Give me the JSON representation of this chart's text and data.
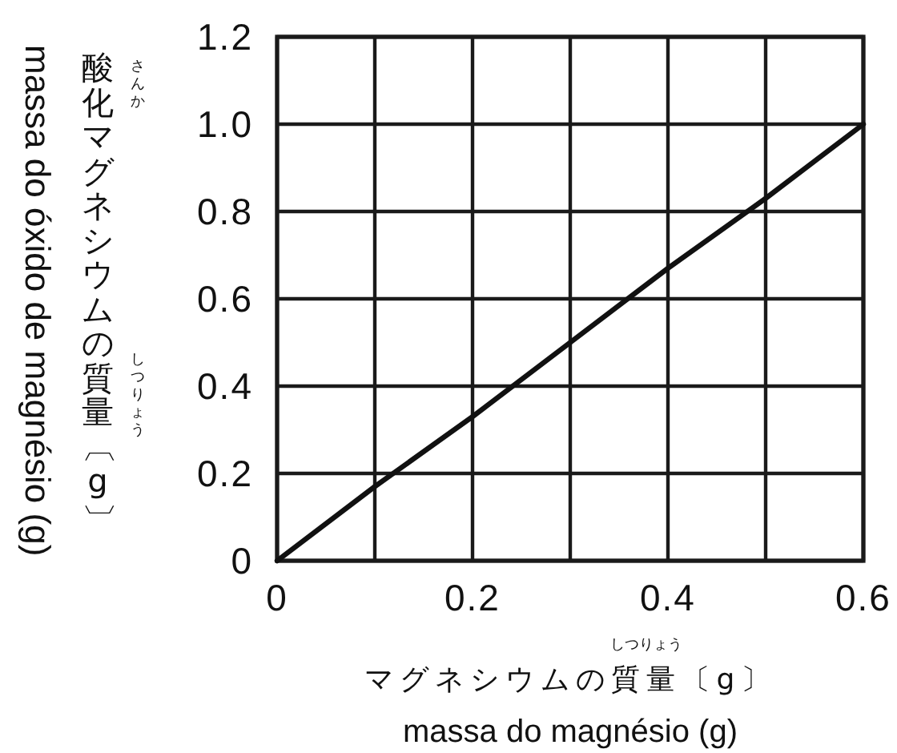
{
  "chart_data": {
    "type": "line",
    "xlabel": "マグネシウムの質量〔g〕",
    "ylabel": "酸化マグネシウムの質量〔g〕",
    "annotations": [
      "さんか",
      "しつりょう",
      "しつりょう",
      "massa do óxido de magnésio (g)",
      "massa do magnésio (g)"
    ],
    "x": [
      0,
      0.1,
      0.2,
      0.3,
      0.4,
      0.5,
      0.6
    ],
    "values": [
      0,
      0.17,
      0.33,
      0.5,
      0.67,
      0.83,
      1.0
    ],
    "color": "#111111",
    "xlim": [
      0,
      0.6
    ],
    "ylim": [
      0,
      1.2
    ],
    "xticks": [
      0,
      {
        "value": 0.1,
        "label": null
      },
      0.2,
      {
        "value": 0.3,
        "label": null
      },
      0.4,
      {
        "value": 0.5,
        "label": null
      },
      0.6
    ],
    "yticks": [
      0,
      0.2,
      0.4,
      0.6,
      0.8,
      {
        "value": 1.0,
        "label": "1.0"
      },
      1.2
    ],
    "grid": true
  }
}
